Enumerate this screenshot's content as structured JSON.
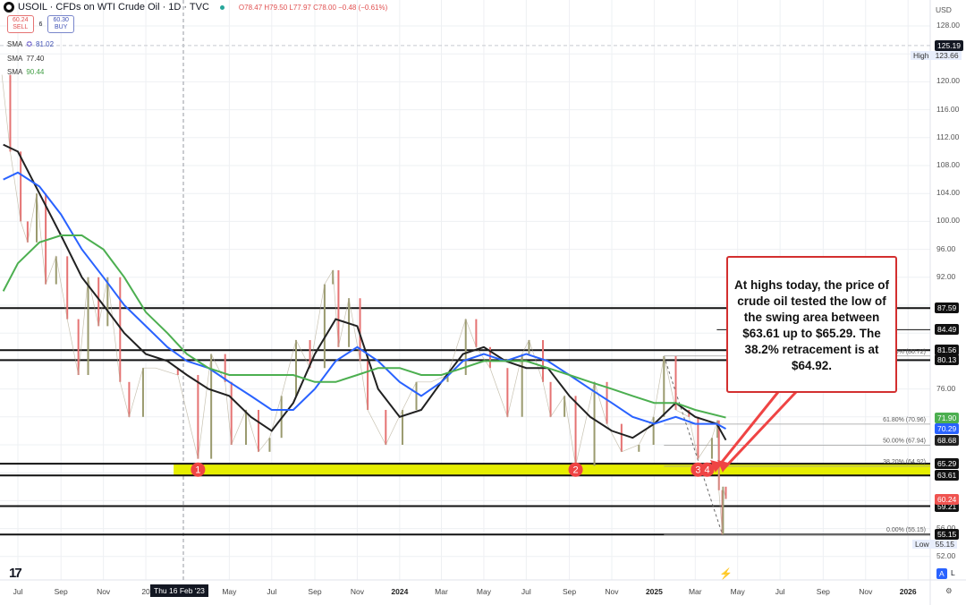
{
  "header": {
    "symbol": "USOIL",
    "title": "USOIL · CFDs on WTI Crude Oil · 1D · TVC",
    "ohlc": "O78.47 H79.50 L77.97 C78.00 −0.48 (−0.61%)"
  },
  "trade": {
    "sell_price": "60.24",
    "sell_label": "SELL",
    "spread": "6",
    "buy_price": "60.30",
    "buy_label": "BUY"
  },
  "indicators": [
    {
      "name": "SMA",
      "value": "81.02",
      "color": "#2962ff"
    },
    {
      "name": "SMA",
      "value": "77.40",
      "color": "#131722"
    },
    {
      "name": "SMA",
      "value": "90.44",
      "color": "#43a047"
    }
  ],
  "annotation": "At highs today, the price of crude oil tested the low of the swing area between $63.61 up to $65.29. The 38.2% retracement is at $64.92.",
  "crosshair_date": "Thu 16 Feb '23",
  "axis": {
    "currency": "USD",
    "auto": "A",
    "log": "L"
  },
  "chart_data": {
    "type": "candlestick",
    "ylim": [
      50,
      130
    ],
    "y_ticks": [
      "128.00",
      "120.00",
      "116.00",
      "112.00",
      "108.00",
      "104.00",
      "100.00",
      "96.00",
      "92.00",
      "76.00",
      "56.00",
      "52.00"
    ],
    "x_ticks": [
      [
        "Jul",
        "2022-07-01"
      ],
      [
        "Sep",
        "2022-09-01"
      ],
      [
        "Nov",
        "2022-11-01"
      ],
      [
        "20",
        "2023-01-01"
      ],
      [
        "May",
        "2023-05-01"
      ],
      [
        "Jul",
        "2023-07-01"
      ],
      [
        "Sep",
        "2023-09-01"
      ],
      [
        "Nov",
        "2023-11-01"
      ],
      [
        "2024",
        "2024-01-01"
      ],
      [
        "Mar",
        "2024-03-01"
      ],
      [
        "May",
        "2024-05-01"
      ],
      [
        "Jul",
        "2024-07-01"
      ],
      [
        "Sep",
        "2024-09-01"
      ],
      [
        "Nov",
        "2024-11-01"
      ],
      [
        "2025",
        "2025-01-01"
      ],
      [
        "Mar",
        "2025-03-01"
      ],
      [
        "May",
        "2025-05-01"
      ],
      [
        "Jul",
        "2025-07-01"
      ],
      [
        "Sep",
        "2025-09-01"
      ],
      [
        "Nov",
        "2025-11-01"
      ],
      [
        "2026",
        "2026-01-01"
      ]
    ],
    "xlim": [
      "2022-06-06",
      "2026-02-20"
    ],
    "price": [
      [
        "2022-06-08",
        121
      ],
      [
        "2022-06-20",
        110
      ],
      [
        "2022-07-05",
        100
      ],
      [
        "2022-07-15",
        97
      ],
      [
        "2022-07-28",
        104
      ],
      [
        "2022-08-10",
        91
      ],
      [
        "2022-08-25",
        95
      ],
      [
        "2022-09-10",
        86
      ],
      [
        "2022-09-26",
        78
      ],
      [
        "2022-10-10",
        92
      ],
      [
        "2022-10-25",
        85
      ],
      [
        "2022-11-07",
        92
      ],
      [
        "2022-11-25",
        77
      ],
      [
        "2022-12-08",
        72
      ],
      [
        "2022-12-28",
        79
      ],
      [
        "2023-01-15",
        79
      ],
      [
        "2023-02-16",
        78
      ],
      [
        "2023-03-17",
        66
      ],
      [
        "2023-04-05",
        81
      ],
      [
        "2023-04-25",
        77
      ],
      [
        "2023-05-04",
        68
      ],
      [
        "2023-05-25",
        73
      ],
      [
        "2023-06-12",
        67
      ],
      [
        "2023-06-28",
        69
      ],
      [
        "2023-07-15",
        75
      ],
      [
        "2023-08-05",
        83
      ],
      [
        "2023-08-25",
        79
      ],
      [
        "2023-09-15",
        91
      ],
      [
        "2023-09-27",
        93
      ],
      [
        "2023-10-05",
        82
      ],
      [
        "2023-10-20",
        89
      ],
      [
        "2023-11-05",
        80
      ],
      [
        "2023-11-16",
        73
      ],
      [
        "2023-12-12",
        68
      ],
      [
        "2024-01-05",
        73
      ],
      [
        "2024-01-25",
        77
      ],
      [
        "2024-02-15",
        77
      ],
      [
        "2024-03-10",
        78
      ],
      [
        "2024-04-05",
        86
      ],
      [
        "2024-04-20",
        82
      ],
      [
        "2024-05-10",
        79
      ],
      [
        "2024-06-04",
        72
      ],
      [
        "2024-06-25",
        81
      ],
      [
        "2024-07-05",
        83
      ],
      [
        "2024-07-25",
        77
      ],
      [
        "2024-08-05",
        72
      ],
      [
        "2024-08-25",
        75
      ],
      [
        "2024-09-10",
        65
      ],
      [
        "2024-10-07",
        77
      ],
      [
        "2024-10-25",
        71
      ],
      [
        "2024-11-15",
        67
      ],
      [
        "2024-12-10",
        68
      ],
      [
        "2024-12-31",
        72
      ],
      [
        "2025-01-15",
        80.7
      ],
      [
        "2025-02-01",
        73
      ],
      [
        "2025-02-20",
        72
      ],
      [
        "2025-03-05",
        66
      ],
      [
        "2025-03-25",
        69
      ],
      [
        "2025-04-02",
        71.5
      ],
      [
        "2025-04-04",
        61.5
      ],
      [
        "2025-04-09",
        55.15
      ],
      [
        "2025-04-10",
        62
      ],
      [
        "2025-04-14",
        60.24
      ]
    ],
    "series": [
      {
        "name": "SMA",
        "value_label": "68.68",
        "color": "#212121",
        "values": [
          [
            "2022-06-10",
            111
          ],
          [
            "2022-07-01",
            110
          ],
          [
            "2022-08-01",
            104
          ],
          [
            "2022-09-01",
            98
          ],
          [
            "2022-10-01",
            92
          ],
          [
            "2022-11-01",
            88
          ],
          [
            "2022-12-01",
            84
          ],
          [
            "2023-01-01",
            81
          ],
          [
            "2023-02-01",
            80
          ],
          [
            "2023-03-01",
            78
          ],
          [
            "2023-04-01",
            76
          ],
          [
            "2023-05-01",
            75
          ],
          [
            "2023-06-01",
            72
          ],
          [
            "2023-07-01",
            70
          ],
          [
            "2023-08-01",
            74
          ],
          [
            "2023-09-01",
            81
          ],
          [
            "2023-10-01",
            86
          ],
          [
            "2023-11-01",
            85
          ],
          [
            "2023-12-01",
            76
          ],
          [
            "2024-01-01",
            72
          ],
          [
            "2024-02-01",
            73
          ],
          [
            "2024-03-01",
            77
          ],
          [
            "2024-04-01",
            81
          ],
          [
            "2024-05-01",
            82
          ],
          [
            "2024-06-01",
            80
          ],
          [
            "2024-07-01",
            79
          ],
          [
            "2024-08-01",
            79
          ],
          [
            "2024-09-01",
            75
          ],
          [
            "2024-10-01",
            72
          ],
          [
            "2024-11-01",
            70
          ],
          [
            "2024-12-01",
            69
          ],
          [
            "2025-01-01",
            71
          ],
          [
            "2025-02-01",
            74
          ],
          [
            "2025-03-01",
            72
          ],
          [
            "2025-04-01",
            71
          ],
          [
            "2025-04-14",
            68.68
          ]
        ]
      },
      {
        "name": "SMA",
        "value_label": "70.29",
        "color": "#2962ff",
        "values": [
          [
            "2022-06-10",
            106
          ],
          [
            "2022-07-01",
            107
          ],
          [
            "2022-08-01",
            105
          ],
          [
            "2022-09-01",
            101
          ],
          [
            "2022-10-01",
            96
          ],
          [
            "2022-11-01",
            92
          ],
          [
            "2022-12-01",
            88
          ],
          [
            "2023-01-01",
            85
          ],
          [
            "2023-02-01",
            82
          ],
          [
            "2023-03-01",
            80
          ],
          [
            "2023-04-01",
            79
          ],
          [
            "2023-05-01",
            77
          ],
          [
            "2023-06-01",
            75
          ],
          [
            "2023-07-01",
            73
          ],
          [
            "2023-08-01",
            73
          ],
          [
            "2023-09-01",
            76
          ],
          [
            "2023-10-01",
            80
          ],
          [
            "2023-11-01",
            82
          ],
          [
            "2023-12-01",
            80
          ],
          [
            "2024-01-01",
            77
          ],
          [
            "2024-02-01",
            75
          ],
          [
            "2024-03-01",
            77
          ],
          [
            "2024-04-01",
            80
          ],
          [
            "2024-05-01",
            81
          ],
          [
            "2024-06-01",
            80
          ],
          [
            "2024-07-01",
            81
          ],
          [
            "2024-08-01",
            80
          ],
          [
            "2024-09-01",
            78
          ],
          [
            "2024-10-01",
            76
          ],
          [
            "2024-11-01",
            74
          ],
          [
            "2024-12-01",
            72
          ],
          [
            "2025-01-01",
            71
          ],
          [
            "2025-02-01",
            72
          ],
          [
            "2025-03-01",
            71
          ],
          [
            "2025-04-01",
            71
          ],
          [
            "2025-04-14",
            70.29
          ]
        ]
      },
      {
        "name": "SMA",
        "value_label": "71.90",
        "color": "#4caf50",
        "values": [
          [
            "2022-06-10",
            90
          ],
          [
            "2022-07-01",
            94
          ],
          [
            "2022-08-01",
            97
          ],
          [
            "2022-09-01",
            98
          ],
          [
            "2022-10-01",
            98
          ],
          [
            "2022-11-01",
            96
          ],
          [
            "2022-12-01",
            92
          ],
          [
            "2023-01-01",
            87
          ],
          [
            "2023-02-01",
            84
          ],
          [
            "2023-03-01",
            81
          ],
          [
            "2023-04-01",
            79
          ],
          [
            "2023-05-01",
            78
          ],
          [
            "2023-06-01",
            78
          ],
          [
            "2023-07-01",
            78
          ],
          [
            "2023-08-01",
            78
          ],
          [
            "2023-09-01",
            77
          ],
          [
            "2023-10-01",
            77
          ],
          [
            "2023-11-01",
            78
          ],
          [
            "2023-12-01",
            79
          ],
          [
            "2024-01-01",
            79
          ],
          [
            "2024-02-01",
            78
          ],
          [
            "2024-03-01",
            78
          ],
          [
            "2024-04-01",
            79
          ],
          [
            "2024-05-01",
            80
          ],
          [
            "2024-06-01",
            80
          ],
          [
            "2024-07-01",
            80
          ],
          [
            "2024-08-01",
            79
          ],
          [
            "2024-09-01",
            78
          ],
          [
            "2024-10-01",
            77
          ],
          [
            "2024-11-01",
            76
          ],
          [
            "2024-12-01",
            75
          ],
          [
            "2025-01-01",
            74
          ],
          [
            "2025-02-01",
            74
          ],
          [
            "2025-03-01",
            73
          ],
          [
            "2025-04-14",
            71.9
          ]
        ]
      }
    ],
    "levels": [
      {
        "price": 87.59,
        "label": "87.59"
      },
      {
        "price": 84.49,
        "label": "84.49",
        "from": "2025-04-01"
      },
      {
        "price": 81.56,
        "label": "81.56"
      },
      {
        "price": 80.13,
        "label": "80.13"
      },
      {
        "price": 59.21,
        "label": "59.21"
      },
      {
        "price": 55.15,
        "label": "55.15"
      }
    ],
    "zone": {
      "low": 63.61,
      "high": 65.29,
      "low_label": "63.61",
      "high_label": "65.29",
      "from": "2023-02-10",
      "color": "#e6ee00"
    },
    "fib": {
      "from": "2025-01-15",
      "levels": [
        {
          "price": 80.72,
          "label": "100% (80.72)"
        },
        {
          "price": 70.96,
          "label": "61.80% (70.96)"
        },
        {
          "price": 67.94,
          "label": "50.00% (67.94)"
        },
        {
          "price": 64.92,
          "label": "38.20% (64.92)"
        },
        {
          "price": 55.15,
          "label": "0.00% (55.15)"
        }
      ]
    },
    "markers": [
      {
        "label": "1",
        "date": "2023-03-17",
        "price": 64.45
      },
      {
        "label": "2",
        "date": "2024-09-10",
        "price": 64.45
      },
      {
        "label": "3",
        "date": "2025-03-05",
        "price": 64.45
      },
      {
        "label": "4",
        "date": "2025-03-18",
        "price": 64.45
      }
    ],
    "current": {
      "price": 60.24,
      "label": "60.24",
      "color": "#ef5350"
    },
    "crosshair_price": {
      "price": 125.19,
      "label": "125.19"
    },
    "high": {
      "label": "High",
      "value": "123.66"
    },
    "low": {
      "label": "Low",
      "value": "55.15"
    }
  }
}
